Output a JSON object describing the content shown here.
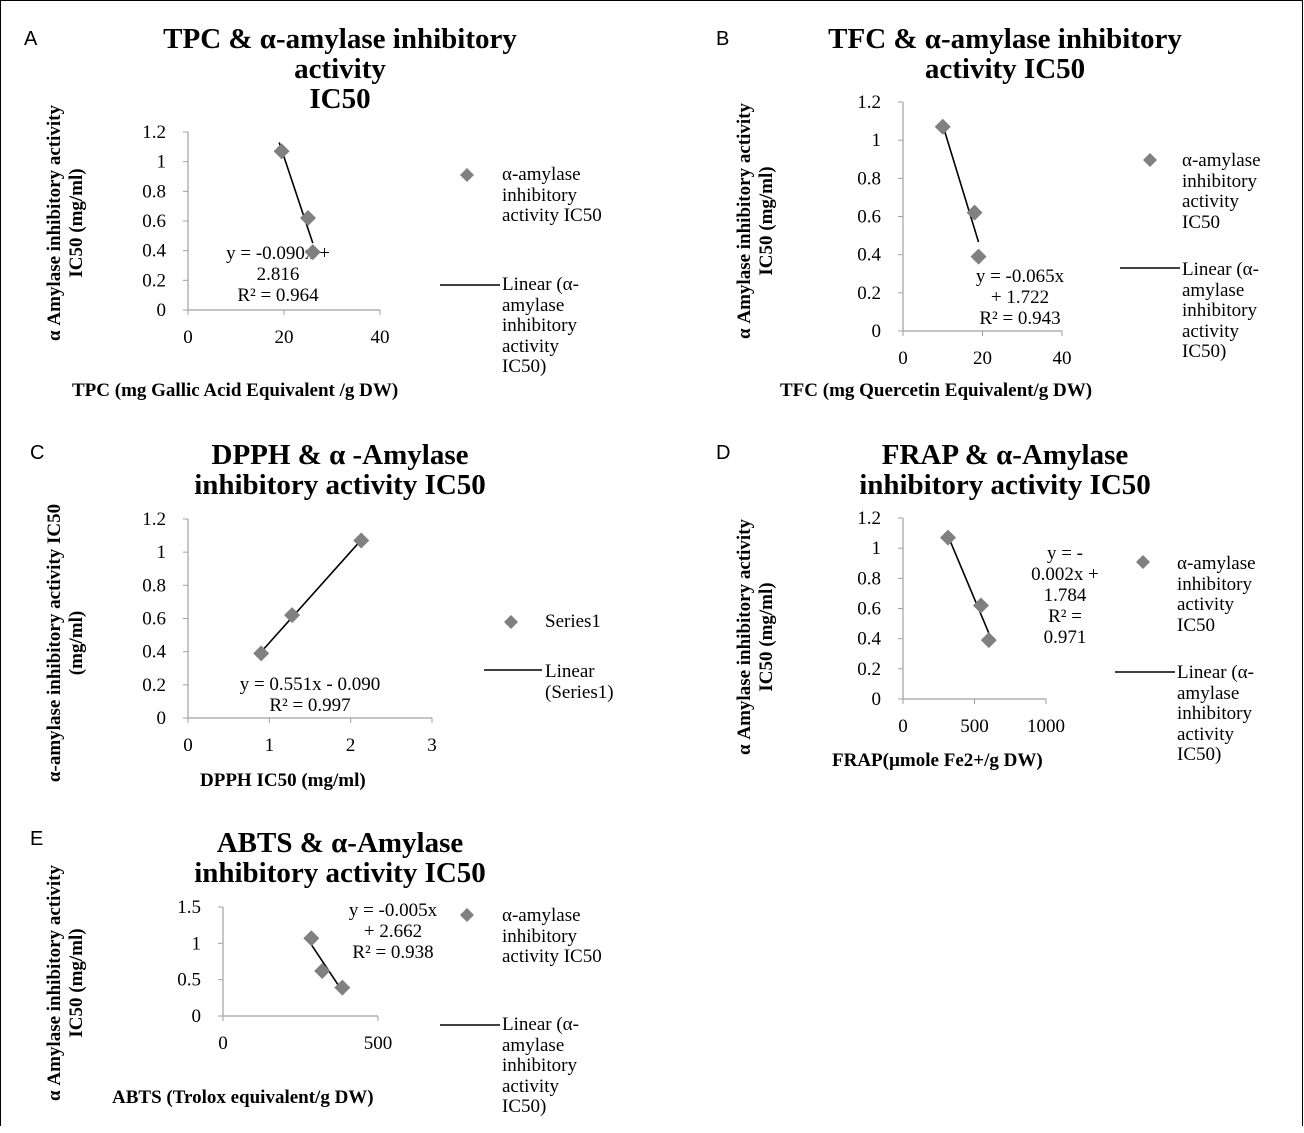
{
  "chart_data": [
    {
      "panel": "A",
      "type": "scatter",
      "title": "TPC & α-amylase inhibitory\nactivity\nIC50",
      "xlabel": "TPC (mg Gallic Acid Equivalent /g DW)",
      "ylabel": "α Amylase inhibitory activity\nIC50 (mg/ml)",
      "xlim": [
        0,
        40
      ],
      "ylim": [
        0,
        1.2
      ],
      "xticks": [
        "0",
        "20",
        "40"
      ],
      "yticks": [
        "0",
        "0.2",
        "0.4",
        "0.6",
        "0.8",
        "1",
        "1.2"
      ],
      "series": [
        {
          "name": "α-amylase inhibitory activity IC50",
          "x": [
            19.5,
            25,
            26
          ],
          "y": [
            1.07,
            0.62,
            0.39
          ]
        }
      ],
      "trendline": {
        "name": "Linear (α-amylase inhibitory activity IC50)",
        "slope": -0.09,
        "intercept": 2.816,
        "x_range": [
          19,
          26
        ]
      },
      "equation": "y = -0.090x +\n2.816\nR² = 0.964",
      "legend_position": "right"
    },
    {
      "panel": "B",
      "type": "scatter",
      "title": "TFC & α-amylase inhibitory\nactivity IC50",
      "xlabel": "TFC (mg Quercetin Equivalent/g DW)",
      "ylabel": "α Amylase inhibitory activity\nIC50 (mg/ml)",
      "xlim": [
        0,
        40
      ],
      "ylim": [
        0,
        1.2
      ],
      "xticks": [
        "0",
        "20",
        "40"
      ],
      "yticks": [
        "0",
        "0.2",
        "0.4",
        "0.6",
        "0.8",
        "1",
        "1.2"
      ],
      "series": [
        {
          "name": "α-amylase inhibitory activity IC50",
          "x": [
            10,
            18,
            19
          ],
          "y": [
            1.07,
            0.62,
            0.39
          ]
        }
      ],
      "trendline": {
        "name": "Linear (α-amylase inhibitory activity IC50)",
        "slope": -0.065,
        "intercept": 1.722,
        "x_range": [
          10,
          19
        ]
      },
      "equation": "y = -0.065x\n+ 1.722\nR² = 0.943",
      "legend_position": "right"
    },
    {
      "panel": "C",
      "type": "scatter",
      "title": "DPPH & α -Amylase\ninhibitory activity IC50",
      "xlabel": "DPPH IC50 (mg/ml)",
      "ylabel": "α-amylase inhibitory activity IC50\n(mg/ml)",
      "xlim": [
        0,
        3
      ],
      "ylim": [
        0,
        1.2
      ],
      "xticks": [
        "0",
        "1",
        "2",
        "3"
      ],
      "yticks": [
        "0",
        "0.2",
        "0.4",
        "0.6",
        "0.8",
        "1",
        "1.2"
      ],
      "series": [
        {
          "name": "Series1",
          "x": [
            0.9,
            1.28,
            2.13
          ],
          "y": [
            0.39,
            0.62,
            1.07
          ]
        }
      ],
      "trendline": {
        "name": "Linear (Series1)",
        "slope": 0.551,
        "intercept": -0.09,
        "x_range": [
          0.9,
          2.13
        ]
      },
      "equation": "y = 0.551x - 0.090\nR² = 0.997",
      "legend_position": "right"
    },
    {
      "panel": "D",
      "type": "scatter",
      "title": "FRAP & α-Amylase\ninhibitory activity IC50",
      "xlabel": "FRAP(µmole Fe2+/g DW)",
      "ylabel": "α Amylase inhibitory activity\nIC50 (mg/ml)",
      "xlim": [
        0,
        1000
      ],
      "ylim": [
        0,
        1.2
      ],
      "xticks": [
        "0",
        "500",
        "1000"
      ],
      "yticks": [
        "0",
        "0.2",
        "0.4",
        "0.6",
        "0.8",
        "1",
        "1.2"
      ],
      "series": [
        {
          "name": "α-amylase inhibitory activity IC50",
          "x": [
            315,
            545,
            600
          ],
          "y": [
            1.07,
            0.62,
            0.39
          ]
        }
      ],
      "trendline": {
        "name": "Linear (α-amylase inhibitory activity IC50)",
        "slope": -0.002,
        "intercept": 1.784,
        "x_range": [
          315,
          600
        ]
      },
      "equation": "y = -\n0.002x +\n1.784\nR² =\n0.971",
      "legend_position": "right"
    },
    {
      "panel": "E",
      "type": "scatter",
      "title": "ABTS & α-Amylase\ninhibitory activity IC50",
      "xlabel": "ABTS (Trolox equivalent/g DW)",
      "ylabel": "α Amylase inhibitory activity\nIC50 (mg/ml)",
      "xlim": [
        0,
        500
      ],
      "ylim": [
        0,
        1.5
      ],
      "xticks": [
        "0",
        "500"
      ],
      "yticks": [
        "0",
        "0.5",
        "1",
        "1.5"
      ],
      "series": [
        {
          "name": "α-amylase inhibitory activity IC50",
          "x": [
            285,
            320,
            385
          ],
          "y": [
            1.07,
            0.62,
            0.39
          ]
        }
      ],
      "trendline": {
        "name": "Linear (α-amylase inhibitory activity IC50)",
        "slope": -0.005,
        "intercept": 2.662,
        "x_range": [
          285,
          385
        ]
      },
      "equation": "y = -0.005x\n+ 2.662\nR² = 0.938",
      "legend_position": "right"
    }
  ],
  "legend": {
    "A": {
      "marker": "α-amylase\ninhibitory\nactivity IC50",
      "line": "Linear (α-\namylase\ninhibitory\nactivity\nIC50)"
    },
    "B": {
      "marker": "α-amylase\ninhibitory\nactivity\nIC50",
      "line": "Linear (α-\namylase\ninhibitory\nactivity\nIC50)"
    },
    "C": {
      "marker": "Series1",
      "line": "Linear\n(Series1)"
    },
    "D": {
      "marker": "α-amylase\ninhibitory\nactivity\nIC50",
      "line": "Linear (α-\namylase\ninhibitory\nactivity\nIC50)"
    },
    "E": {
      "marker": "α-amylase\ninhibitory\nactivity IC50",
      "line": "Linear (α-\namylase\ninhibitory\nactivity\nIC50)"
    }
  },
  "colors": {
    "marker": "#808080",
    "axis": "#a0a0a0",
    "line": "#000000"
  }
}
